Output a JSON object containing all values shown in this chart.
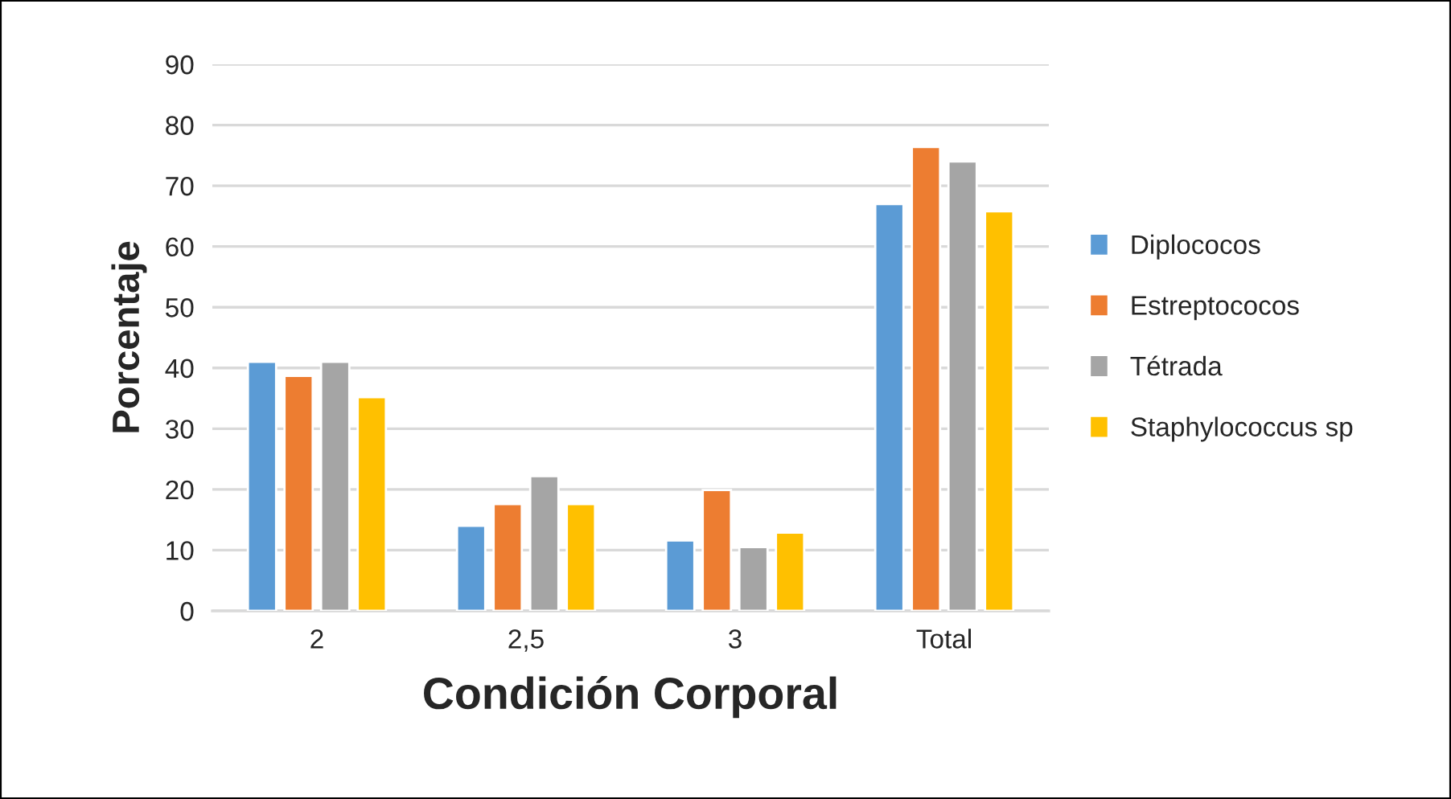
{
  "chart_data": {
    "type": "bar",
    "xlabel": "Condición Corporal",
    "ylabel": "Porcentaje",
    "categories": [
      "2",
      "2,5",
      "3",
      "Total"
    ],
    "series": [
      {
        "name": "Diplococos",
        "color": "#5b9bd5",
        "values": [
          41.0,
          14.0,
          11.6,
          67.0
        ]
      },
      {
        "name": "Estreptococos",
        "color": "#ed7d31",
        "values": [
          38.7,
          17.6,
          19.9,
          76.4
        ]
      },
      {
        "name": "Tétrada",
        "color": "#a5a5a5",
        "values": [
          41.0,
          22.2,
          10.5,
          74.0
        ]
      },
      {
        "name": "Staphylococcus sp",
        "color": "#ffc000",
        "values": [
          35.2,
          17.6,
          12.9,
          65.8
        ]
      }
    ],
    "ylim": [
      0,
      90
    ],
    "yticks": [
      0,
      10,
      20,
      30,
      40,
      50,
      60,
      70,
      80,
      90
    ],
    "grid": "y",
    "legend": "right"
  }
}
